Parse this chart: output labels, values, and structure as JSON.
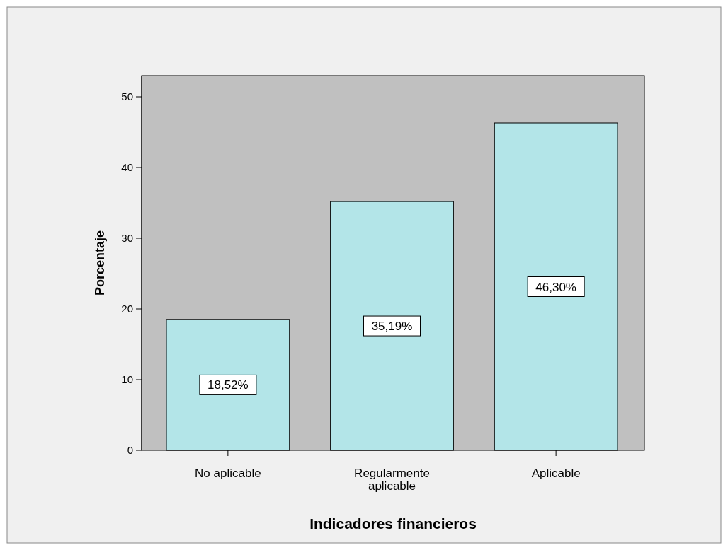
{
  "chart_data": {
    "type": "bar",
    "xlabel": "Indicadores financieros",
    "ylabel": "Porcentaje",
    "categories": [
      "No aplicable",
      "Regularmente aplicable",
      "Aplicable"
    ],
    "values": [
      18.52,
      35.19,
      46.3
    ],
    "color": "#b3e5e8",
    "value_labels": [
      "18,52%",
      "35,19%",
      "46,30%"
    ],
    "ylim": [
      0,
      53
    ],
    "yticks": [
      0,
      10,
      20,
      30,
      40,
      50
    ],
    "grid": false
  }
}
